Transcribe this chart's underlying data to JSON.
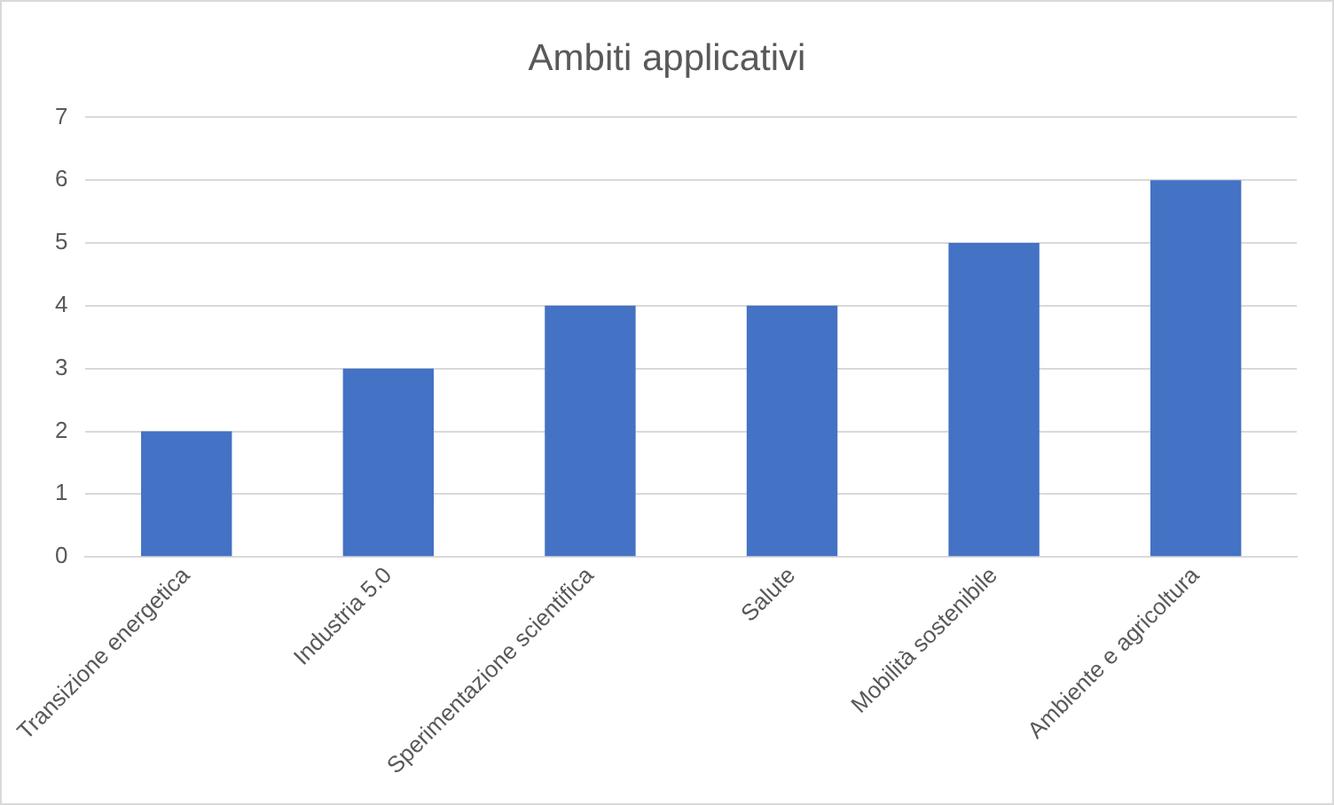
{
  "chart_data": {
    "type": "bar",
    "title": "Ambiti applicativi",
    "categories": [
      "Transizione energetica",
      "Industria 5.0",
      "Sperimentazione scientifica",
      "Salute",
      "Mobilità sostenibile",
      "Ambiente e agricoltura"
    ],
    "values": [
      2,
      3,
      4,
      4,
      5,
      6
    ],
    "color": "#4472c4",
    "ylim": [
      0,
      7
    ],
    "yticks": [
      0,
      1,
      2,
      3,
      4,
      5,
      6,
      7
    ],
    "grid": "y"
  }
}
